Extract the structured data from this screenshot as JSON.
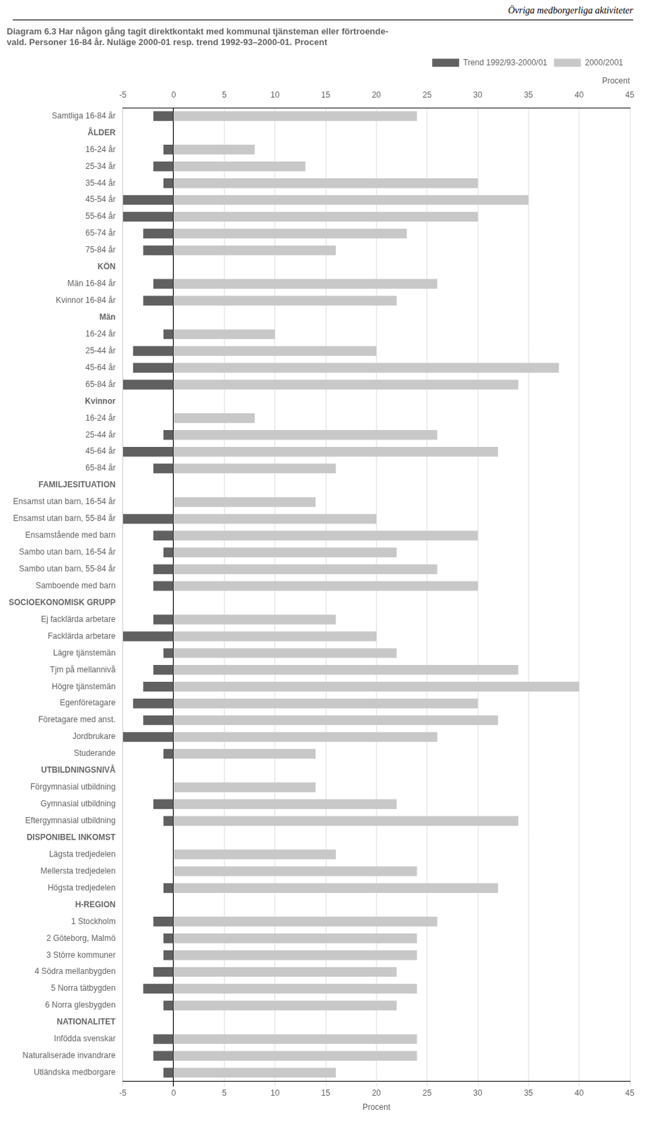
{
  "chart_data": {
    "type": "bar",
    "orientation": "horizontal",
    "subtitle": "Övriga medborgerliga aktiviteter",
    "title": "Diagram 6.3 Har någon gång tagit direktkontakt med kommunal tjänsteman eller förtroende-\nvald. Personer 16-84 år. Nuläge 2000-01 resp. trend 1992-93–2000-01. Procent",
    "xlabel": "Procent",
    "xlim": [
      -5,
      45
    ],
    "xticks": [
      -5,
      0,
      5,
      10,
      15,
      20,
      25,
      30,
      35,
      40,
      45
    ],
    "grid": true,
    "legend": "upper right",
    "categories": [
      "Samtliga 16-84 år",
      "ÅLDER",
      "16-24 år",
      "25-34 år",
      "35-44 år",
      "45-54 år",
      "55-64 år",
      "65-74 år",
      "75-84 år",
      "KÖN",
      "Män 16-84 år",
      "Kvinnor 16-84 år",
      "Män",
      "16-24 år",
      "25-44 år",
      "45-64 år",
      "65-84 år",
      "Kvinnor",
      "16-24 år",
      "25-44 år",
      "45-64 år",
      "65-84 år",
      "FAMILJESITUATION",
      "Ensamst utan barn, 16-54 år",
      "Ensamst utan barn, 55-84 år",
      "Ensamstående med barn",
      "Sambo utan barn, 16-54 år",
      "Sambo utan barn, 55-84 år",
      "Samboende med barn",
      "SOCIOEKONOMISK GRUPP",
      "Ej facklärda arbetare",
      "Facklärda arbetare",
      "Lägre tjänstemän",
      "Tjm på mellannivå",
      "Högre tjänstemän",
      "Egenföretagare",
      "Företagare med anst.",
      "Jordbrukare",
      "Studerande",
      "UTBILDNINGSNIVÅ",
      "Förgymnasial utbildning",
      "Gymnasial utbildning",
      "Eftergymnasial utbildning",
      "DISPONIBEL INKOMST",
      "Lägsta tredjedelen",
      "Mellersta tredjedelen",
      "Högsta tredjedelen",
      "H-REGION",
      "1 Stockholm",
      "2 Göteborg, Malmö",
      "3 Större kommuner",
      "4 Södra mellanbygden",
      "5 Norra tätbygden",
      "6 Norra glesbygden",
      "NATIONALITET",
      "Infödda svenskar",
      "Naturaliserade invandrare",
      "Utländska medborgare"
    ],
    "series": [
      {
        "name": "2000/2001",
        "color": "#c8c8c8",
        "values": [
          24,
          null,
          8,
          13,
          30,
          35,
          30,
          23,
          16,
          null,
          26,
          22,
          null,
          10,
          20,
          38,
          34,
          null,
          8,
          26,
          32,
          16,
          null,
          14,
          20,
          30,
          22,
          26,
          30,
          null,
          16,
          20,
          22,
          34,
          40,
          30,
          32,
          26,
          14,
          null,
          14,
          22,
          34,
          null,
          16,
          24,
          32,
          null,
          26,
          24,
          24,
          22,
          24,
          22,
          null,
          24,
          24,
          16
        ]
      },
      {
        "name": "Trend 1992/93-2000/01",
        "color": "#606060",
        "values": [
          -2,
          null,
          -1,
          -2,
          -1,
          -5,
          -5,
          -3,
          -3,
          null,
          -2,
          -3,
          null,
          -1,
          -4,
          -4,
          -5,
          null,
          0,
          -1,
          -5,
          -2,
          null,
          0,
          -5,
          -2,
          -1,
          -2,
          -2,
          null,
          -2,
          -5,
          -1,
          -2,
          -3,
          -4,
          -3,
          -5,
          -1,
          null,
          0,
          -2,
          -1,
          null,
          0,
          0,
          -1,
          null,
          -2,
          -1,
          -1,
          -2,
          -3,
          -1,
          null,
          -2,
          -2,
          -1
        ]
      }
    ]
  }
}
